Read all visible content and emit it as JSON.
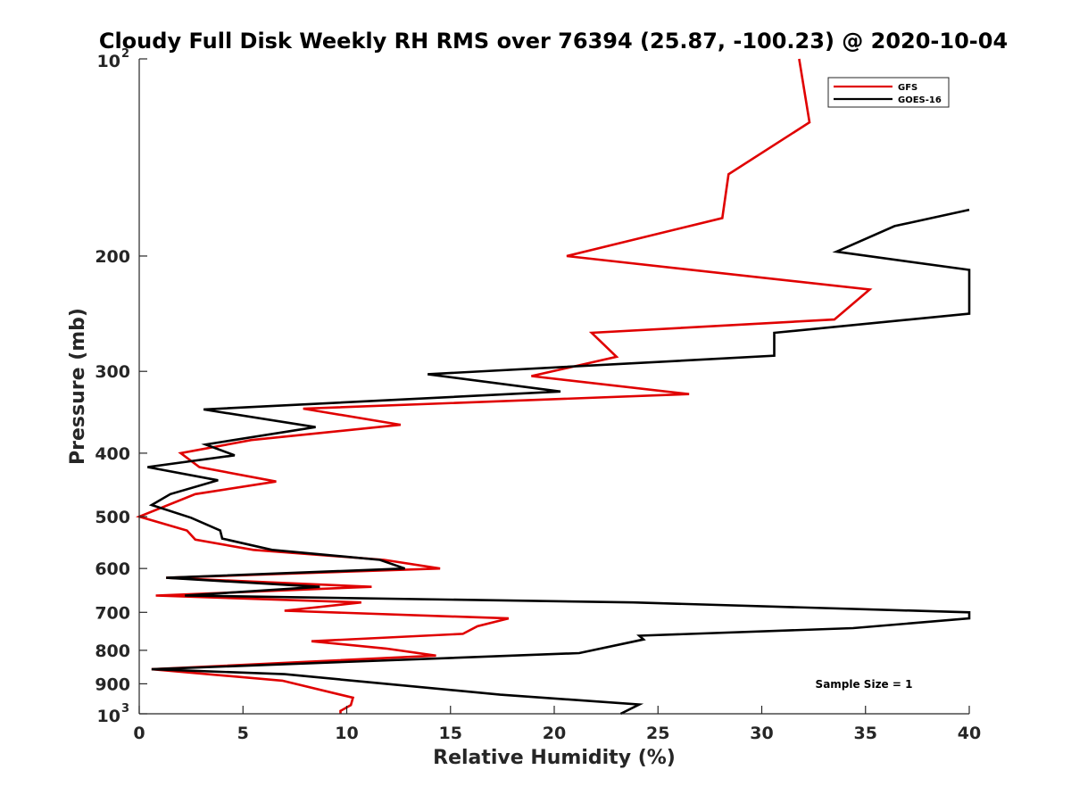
{
  "chart_data": {
    "type": "line",
    "title": "Cloudy Full Disk Weekly RH RMS over 76394 (25.87, -100.23) @ 2020-10-04",
    "xlabel": "Relative Humidity (%)",
    "ylabel": "Pressure (mb)",
    "xlim": [
      0,
      40
    ],
    "ylim": [
      100,
      1000
    ],
    "y_scale": "log",
    "y_reversed": true,
    "grid": false,
    "legend_position": "top-right",
    "x_ticks": [
      "0",
      "5",
      "10",
      "15",
      "20",
      "25",
      "30",
      "35",
      "40"
    ],
    "y_ticks": [
      {
        "value": 100,
        "base": "10",
        "exp": "2"
      },
      {
        "value": 200,
        "label": "200"
      },
      {
        "value": 300,
        "label": "300"
      },
      {
        "value": 400,
        "label": "400"
      },
      {
        "value": 500,
        "label": "500"
      },
      {
        "value": 600,
        "label": "600"
      },
      {
        "value": 700,
        "label": "700"
      },
      {
        "value": 800,
        "label": "800"
      },
      {
        "value": 900,
        "label": "900"
      },
      {
        "value": 1000,
        "base": "10",
        "exp": "3"
      }
    ],
    "annotation": "Sample Size = 1",
    "series": [
      {
        "name": "GFS",
        "color": "#e00000",
        "points": [
          [
            31.8,
            100
          ],
          [
            32.3,
            125
          ],
          [
            28.4,
            150
          ],
          [
            28.1,
            175
          ],
          [
            20.6,
            200
          ],
          [
            35.2,
            225
          ],
          [
            33.5,
            250
          ],
          [
            21.8,
            262
          ],
          [
            23.0,
            285
          ],
          [
            18.9,
            305
          ],
          [
            26.5,
            325
          ],
          [
            7.9,
            342
          ],
          [
            12.6,
            362
          ],
          [
            5.4,
            382
          ],
          [
            2.0,
            400
          ],
          [
            2.9,
            420
          ],
          [
            6.6,
            442
          ],
          [
            2.7,
            462
          ],
          [
            0.0,
            500
          ],
          [
            2.3,
            525
          ],
          [
            2.7,
            542
          ],
          [
            5.5,
            562
          ],
          [
            11.8,
            582
          ],
          [
            14.5,
            600
          ],
          [
            1.3,
            620
          ],
          [
            11.2,
            640
          ],
          [
            0.8,
            660
          ],
          [
            10.7,
            676
          ],
          [
            7.0,
            696
          ],
          [
            17.8,
            715
          ],
          [
            16.3,
            735
          ],
          [
            15.6,
            755
          ],
          [
            8.3,
            775
          ],
          [
            11.9,
            795
          ],
          [
            14.3,
            815
          ],
          [
            0.6,
            855
          ],
          [
            6.9,
            890
          ],
          [
            10.3,
            945
          ],
          [
            10.2,
            970
          ],
          [
            9.7,
            990
          ],
          [
            9.7,
            1000
          ]
        ]
      },
      {
        "name": "GOES-16",
        "color": "#000000",
        "points": [
          [
            40.0,
            170
          ],
          [
            36.4,
            180
          ],
          [
            33.6,
            197
          ],
          [
            40.0,
            210
          ],
          [
            40.0,
            245
          ],
          [
            30.6,
            262
          ],
          [
            30.6,
            284
          ],
          [
            13.9,
            303
          ],
          [
            20.3,
            322
          ],
          [
            3.1,
            343
          ],
          [
            8.5,
            365
          ],
          [
            3.2,
            388
          ],
          [
            4.6,
            403
          ],
          [
            0.4,
            420
          ],
          [
            3.8,
            440
          ],
          [
            1.5,
            462
          ],
          [
            0.6,
            480
          ],
          [
            2.5,
            502
          ],
          [
            3.9,
            525
          ],
          [
            4.0,
            540
          ],
          [
            6.4,
            562
          ],
          [
            11.6,
            582
          ],
          [
            12.8,
            600
          ],
          [
            1.3,
            620
          ],
          [
            8.7,
            640
          ],
          [
            2.2,
            660
          ],
          [
            23.8,
            676
          ],
          [
            40.0,
            700
          ],
          [
            40.0,
            715
          ],
          [
            34.4,
            740
          ],
          [
            24.1,
            760
          ],
          [
            24.3,
            770
          ],
          [
            21.2,
            808
          ],
          [
            0.6,
            855
          ],
          [
            7.0,
            870
          ],
          [
            17.4,
            935
          ],
          [
            24.1,
            968
          ],
          [
            23.2,
            1000
          ]
        ]
      }
    ]
  }
}
